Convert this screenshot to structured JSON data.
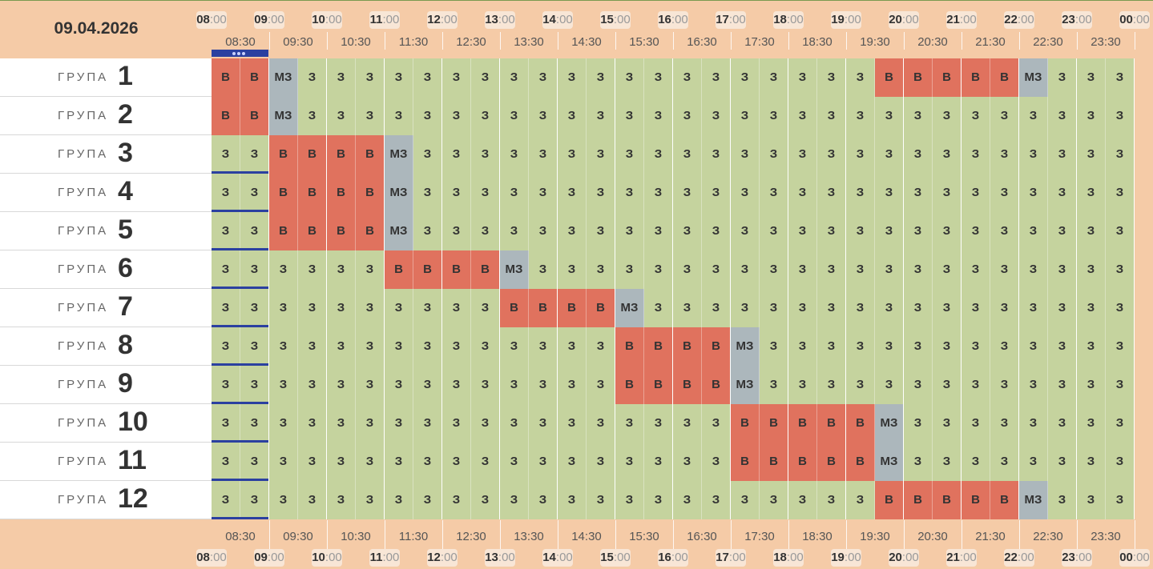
{
  "date": "09.04.2026",
  "hours": [
    "08",
    "09",
    "10",
    "11",
    "12",
    "13",
    "14",
    "15",
    "16",
    "17",
    "18",
    "19",
    "20",
    "21",
    "22",
    "23",
    "00"
  ],
  "minutes_suffix": ":00",
  "half_hours": [
    "08:30",
    "09:30",
    "10:30",
    "11:30",
    "12:30",
    "13:30",
    "14:30",
    "15:30",
    "16:30",
    "17:30",
    "18:30",
    "19:30",
    "20:30",
    "21:30",
    "22:30",
    "23:30"
  ],
  "group_word": "ГРУПА",
  "legend_codes": {
    "z": "З",
    "b": "В",
    "m": "МЗ"
  },
  "colors": {
    "z": "#c5d39e",
    "b": "#e0725e",
    "m": "#acb7bc",
    "header": "#f5cba7",
    "now_marker": "#2b40a0"
  },
  "groups": [
    {
      "number": "1",
      "cells": "bbmzzzzzzzzzzzzzzzzzzzzbbbbbmzzz"
    },
    {
      "number": "2",
      "cells": "bbmzzzzzzzzzzzzzzzzzzzzzzzzzzzzz"
    },
    {
      "number": "3",
      "cells": "zzbbbbmzzzzzzzzzzzzzzzzzzzzzzzzz"
    },
    {
      "number": "4",
      "cells": "zzbbbbmzzzzzzzzzzzzzzzzzzzzzzzzz"
    },
    {
      "number": "5",
      "cells": "zzbbbbmzzzzzzzzzzzzzzzzzzzzzzzzz"
    },
    {
      "number": "6",
      "cells": "zzzzzzbbbbmzzzzzzzzzzzzzzzzzzzzz"
    },
    {
      "number": "7",
      "cells": "zzzzzzzzzzbbbbmzzzzzzzzzzzzzzzzz"
    },
    {
      "number": "8",
      "cells": "zzzzzzzzzzzzzzbbbbmzzzzzzzzzzzzz"
    },
    {
      "number": "9",
      "cells": "zzzzzzzzzzzzzzbbbbmzzzzzzzzzzzzz"
    },
    {
      "number": "10",
      "cells": "zzzzzzzzzzzzzzzzzzbbbbbmzzzzzzzz"
    },
    {
      "number": "11",
      "cells": "zzzzzzzzzzzzzzzzzzbbbbbmzzzzzzzz"
    },
    {
      "number": "12",
      "cells": "zzzzzzzzzzzzzzzzzzzzzzzbbbbbmzzz"
    }
  ]
}
